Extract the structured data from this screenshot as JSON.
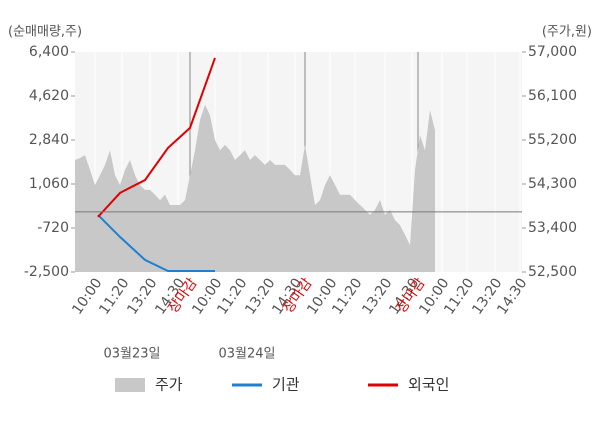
{
  "chart_data": {
    "type": "line",
    "y_label": "(순매매량,주)",
    "y2_label": "(주가,원)",
    "dates": [
      "03월23일",
      "03월24일"
    ],
    "xlim": [
      0,
      447
    ],
    "xticks": [
      {
        "value": 20,
        "label": "10:00"
      },
      {
        "value": 47,
        "label": "11:20"
      },
      {
        "value": 75,
        "label": "13:20"
      },
      {
        "value": 103,
        "label": "14:30"
      },
      {
        "value": 115,
        "label": "장마감",
        "color": "#e00000"
      },
      {
        "value": 140,
        "label": "10:00"
      },
      {
        "value": 165,
        "label": "11:20"
      },
      {
        "value": 193,
        "label": "13:20"
      },
      {
        "value": 220,
        "label": "14:30"
      },
      {
        "value": 230,
        "label": "장마감",
        "color": "#e00000"
      },
      {
        "value": 255,
        "label": "10:00"
      },
      {
        "value": 280,
        "label": "11:20"
      },
      {
        "value": 310,
        "label": "13:20"
      },
      {
        "value": 337,
        "label": "14:30"
      },
      {
        "value": 343,
        "label": "장마감",
        "color": "#e00000"
      },
      {
        "value": 367,
        "label": "10:00"
      },
      {
        "value": 392,
        "label": "11:20"
      },
      {
        "value": 420,
        "label": "13:20"
      },
      {
        "value": 445,
        "label": "14:30"
      }
    ],
    "ylim": [
      -2500,
      6400
    ],
    "yticks": [
      {
        "value": 6400,
        "label": "6,400"
      },
      {
        "value": 4620,
        "label": "4,620"
      },
      {
        "value": 2840,
        "label": "2,840"
      },
      {
        "value": 1060,
        "label": "1,060"
      },
      {
        "value": -720,
        "label": "-720"
      },
      {
        "value": -2500,
        "label": "-2,500"
      }
    ],
    "y2lim": [
      52500,
      57000
    ],
    "y2ticks": [
      {
        "value": 57000,
        "label": "57,000"
      },
      {
        "value": 56100,
        "label": "56,100"
      },
      {
        "value": 55200,
        "label": "55,200"
      },
      {
        "value": 54300,
        "label": "54,300"
      },
      {
        "value": 53400,
        "label": "53,400"
      },
      {
        "value": 52500,
        "label": "52,500"
      }
    ],
    "reference_line": {
      "axis": "y2",
      "value": 53730
    },
    "series": [
      {
        "name": "주가",
        "type": "area",
        "color": "#c8c8c8",
        "axis": "y2",
        "x": [
          0,
          5,
          10,
          15,
          20,
          25,
          30,
          35,
          40,
          45,
          50,
          55,
          60,
          65,
          70,
          75,
          80,
          85,
          90,
          95,
          100,
          105,
          110,
          115,
          120,
          125,
          130,
          135,
          140,
          145,
          150,
          155,
          160,
          165,
          170,
          175,
          180,
          185,
          190,
          195,
          200,
          205,
          210,
          215,
          220,
          225,
          230,
          235,
          240,
          245,
          250,
          255,
          260,
          265,
          270,
          275,
          280,
          285,
          290,
          295,
          300,
          305,
          310,
          315,
          320,
          325,
          330,
          335,
          340,
          345,
          350,
          355,
          360
        ],
        "values": [
          54790,
          54830,
          54890,
          54590,
          54280,
          54480,
          54690,
          54990,
          54480,
          54280,
          54590,
          54790,
          54480,
          54280,
          54180,
          54180,
          54080,
          53970,
          54080,
          53870,
          53870,
          53870,
          53970,
          54480,
          54990,
          55610,
          55920,
          55710,
          55200,
          54990,
          55100,
          54990,
          54790,
          54890,
          54990,
          54790,
          54890,
          54790,
          54690,
          54790,
          54690,
          54690,
          54690,
          54590,
          54480,
          54480,
          55100,
          54480,
          53870,
          53970,
          54280,
          54480,
          54280,
          54080,
          54080,
          54080,
          53970,
          53870,
          53770,
          53670,
          53770,
          53970,
          53670,
          53770,
          53560,
          53460,
          53260,
          53050,
          54590,
          55300,
          54990,
          55810,
          55400
        ]
      },
      {
        "name": "기관",
        "color": "#1f7fd0",
        "x": [
          23,
          45,
          70,
          93,
          115,
          140
        ],
        "values": [
          -190,
          -1080,
          -2010,
          -2460,
          -2460,
          -2460
        ]
      },
      {
        "name": "외국인",
        "color": "#e00000",
        "x": [
          23,
          45,
          70,
          93,
          115,
          140
        ],
        "values": [
          -270,
          700,
          1220,
          2520,
          3330,
          6160
        ]
      }
    ]
  }
}
